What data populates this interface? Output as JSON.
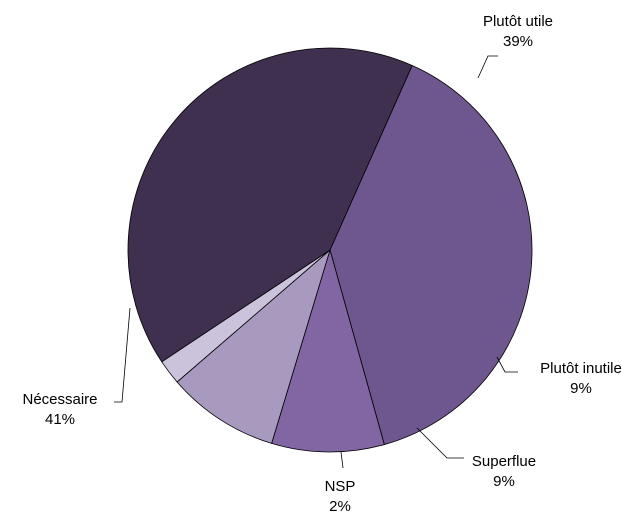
{
  "chart_data": {
    "type": "pie",
    "slices": [
      {
        "label": "Plutôt utile",
        "value_label": "39%",
        "value": 39,
        "color": "#6E568E"
      },
      {
        "label": "Plutôt inutile",
        "value_label": "9%",
        "value": 9,
        "color": "#8166A3"
      },
      {
        "label": "Superflue",
        "value_label": "9%",
        "value": 9,
        "color": "#A899BF"
      },
      {
        "label": "NSP",
        "value_label": "2%",
        "value": 2,
        "color": "#CBC2DB"
      },
      {
        "label": "Nécessaire",
        "value_label": "41%",
        "value": 41,
        "color": "#403050"
      }
    ],
    "start_angle_deg": -66,
    "direction": "clockwise",
    "legend": "none"
  }
}
